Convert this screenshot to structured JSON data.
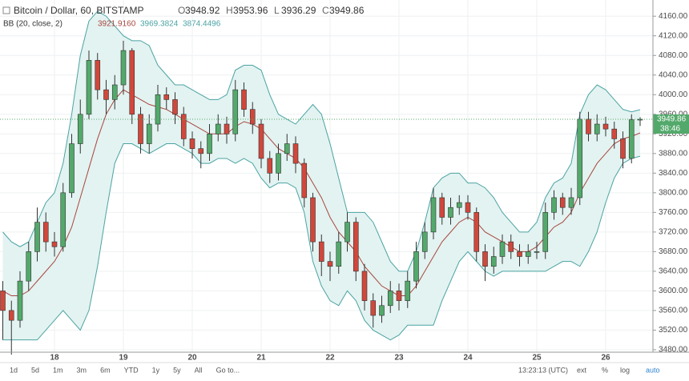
{
  "header": {
    "title": "Bitcoin / Dollar, 60, BITSTAMP",
    "ohlc": [
      {
        "key": "O",
        "value": "3948.92"
      },
      {
        "key": "H",
        "value": "3953.96"
      },
      {
        "key": "L",
        "value": "3936.29"
      },
      {
        "key": "C",
        "value": "3949.86"
      }
    ],
    "indicator": "BB (20, close, 2)",
    "indicator_values": [
      "3921.9160",
      "3969.3824",
      "3874.4496"
    ]
  },
  "chart_data": {
    "type": "candlestick",
    "up_color": "#53a96b",
    "down_color": "#d0483c",
    "categories": [
      null,
      null,
      null,
      null,
      null,
      null,
      "18",
      null,
      null,
      null,
      null,
      null,
      null,
      null,
      "19",
      null,
      null,
      null,
      null,
      null,
      null,
      null,
      "20",
      null,
      null,
      null,
      null,
      null,
      null,
      null,
      "21",
      null,
      null,
      null,
      null,
      null,
      null,
      null,
      "22",
      null,
      null,
      null,
      null,
      null,
      null,
      null,
      "23",
      null,
      null,
      null,
      null,
      null,
      null,
      null,
      "24",
      null,
      null,
      null,
      null,
      null,
      null,
      null,
      "25",
      null,
      null,
      null,
      null,
      null,
      null,
      null,
      "26",
      null,
      null,
      null,
      null
    ],
    "open": [
      3600,
      3560,
      3540,
      3620,
      3680,
      3740,
      3700,
      3690,
      3800,
      3900,
      3960,
      4070,
      4010,
      3990,
      4020,
      4090,
      3960,
      3900,
      3940,
      4000,
      3990,
      3960,
      3910,
      3890,
      3880,
      3920,
      3940,
      3920,
      4010,
      3970,
      3940,
      3870,
      3840,
      3880,
      3900,
      3860,
      3790,
      3700,
      3660,
      3650,
      3700,
      3740,
      3640,
      3580,
      3550,
      3570,
      3600,
      3580,
      3620,
      3680,
      3720,
      3790,
      3750,
      3770,
      3780,
      3760,
      3680,
      3650,
      3670,
      3700,
      3680,
      3670,
      3680,
      3680,
      3760,
      3790,
      3770,
      3790,
      3950,
      3920,
      3940,
      3930,
      3910,
      3870,
      3948.92
    ],
    "high": [
      3620,
      3580,
      3640,
      3700,
      3770,
      3760,
      3720,
      3820,
      3920,
      3990,
      4090,
      4085,
      4030,
      4040,
      4110,
      4095,
      3975,
      3960,
      4020,
      4015,
      4005,
      3975,
      3925,
      3905,
      3940,
      3960,
      3955,
      4030,
      4025,
      3985,
      3950,
      3885,
      3900,
      3920,
      3915,
      3870,
      3800,
      3715,
      3680,
      3720,
      3760,
      3750,
      3655,
      3595,
      3590,
      3620,
      3615,
      3640,
      3700,
      3740,
      3810,
      3800,
      3790,
      3795,
      3795,
      3770,
      3695,
      3690,
      3715,
      3715,
      3695,
      3695,
      3700,
      3780,
      3805,
      3800,
      3810,
      3965,
      3965,
      3960,
      3955,
      3945,
      3925,
      3960,
      3953.96
    ],
    "low": [
      3500,
      3470,
      3525,
      3600,
      3660,
      3680,
      3670,
      3680,
      3790,
      3880,
      3950,
      3990,
      3960,
      3970,
      4000,
      3940,
      3880,
      3880,
      3925,
      3970,
      3940,
      3895,
      3870,
      3850,
      3865,
      3905,
      3900,
      3905,
      3955,
      3920,
      3850,
      3820,
      3825,
      3865,
      3840,
      3770,
      3680,
      3630,
      3620,
      3635,
      3680,
      3620,
      3560,
      3525,
      3535,
      3555,
      3560,
      3565,
      3605,
      3665,
      3705,
      3735,
      3735,
      3755,
      3745,
      3660,
      3620,
      3635,
      3655,
      3665,
      3650,
      3655,
      3665,
      3665,
      3745,
      3755,
      3755,
      3775,
      3905,
      3905,
      3915,
      3890,
      3850,
      3860,
      3936.29
    ],
    "close": [
      3560,
      3540,
      3620,
      3680,
      3740,
      3700,
      3690,
      3800,
      3900,
      3960,
      4070,
      4010,
      3990,
      4020,
      4090,
      3960,
      3900,
      3940,
      4000,
      3990,
      3960,
      3910,
      3890,
      3880,
      3920,
      3940,
      3920,
      4010,
      3970,
      3940,
      3870,
      3840,
      3880,
      3900,
      3860,
      3790,
      3700,
      3660,
      3650,
      3700,
      3740,
      3640,
      3580,
      3550,
      3570,
      3600,
      3580,
      3620,
      3680,
      3720,
      3790,
      3750,
      3770,
      3780,
      3760,
      3680,
      3650,
      3670,
      3700,
      3680,
      3670,
      3680,
      3680,
      3760,
      3790,
      3770,
      3790,
      3950,
      3920,
      3940,
      3930,
      3910,
      3870,
      3948.92,
      3949.86
    ],
    "bands": {
      "fill": "#e3f3f1",
      "band_color": "#4ba3a3",
      "middle_color": "#a8463f",
      "upper": [
        3720,
        3700,
        3690,
        3700,
        3740,
        3780,
        3800,
        3860,
        3960,
        4080,
        4150,
        4170,
        4160,
        4140,
        4120,
        4110,
        4110,
        4100,
        4060,
        4040,
        4020,
        4020,
        4010,
        4000,
        3990,
        3990,
        4000,
        4050,
        4060,
        4060,
        4050,
        4000,
        3960,
        3950,
        3940,
        3960,
        3980,
        3960,
        3900,
        3830,
        3760,
        3760,
        3760,
        3740,
        3700,
        3660,
        3640,
        3640,
        3680,
        3740,
        3810,
        3830,
        3840,
        3840,
        3820,
        3820,
        3810,
        3790,
        3760,
        3740,
        3720,
        3720,
        3740,
        3790,
        3820,
        3830,
        3860,
        3960,
        4000,
        4020,
        4010,
        3990,
        3970,
        3965,
        3969.3824
      ],
      "middle": [
        3600,
        3590,
        3590,
        3600,
        3620,
        3640,
        3660,
        3690,
        3730,
        3790,
        3850,
        3910,
        3960,
        3990,
        4010,
        4000,
        3990,
        3980,
        3975,
        3970,
        3960,
        3950,
        3940,
        3930,
        3920,
        3920,
        3920,
        3935,
        3945,
        3940,
        3930,
        3910,
        3890,
        3880,
        3870,
        3850,
        3820,
        3790,
        3750,
        3720,
        3700,
        3680,
        3650,
        3630,
        3610,
        3600,
        3590,
        3590,
        3610,
        3640,
        3670,
        3700,
        3720,
        3740,
        3750,
        3740,
        3720,
        3710,
        3700,
        3690,
        3680,
        3680,
        3690,
        3710,
        3730,
        3740,
        3760,
        3800,
        3830,
        3860,
        3880,
        3900,
        3910,
        3915,
        3921.916
      ],
      "lower": [
        3500,
        3500,
        3500,
        3500,
        3500,
        3520,
        3540,
        3560,
        3540,
        3520,
        3560,
        3650,
        3760,
        3860,
        3900,
        3900,
        3890,
        3880,
        3890,
        3900,
        3900,
        3890,
        3880,
        3860,
        3860,
        3870,
        3870,
        3860,
        3870,
        3860,
        3830,
        3810,
        3820,
        3820,
        3810,
        3760,
        3660,
        3610,
        3580,
        3570,
        3600,
        3580,
        3540,
        3520,
        3510,
        3500,
        3510,
        3530,
        3530,
        3530,
        3530,
        3580,
        3620,
        3660,
        3680,
        3660,
        3640,
        3630,
        3640,
        3640,
        3640,
        3640,
        3640,
        3640,
        3650,
        3660,
        3660,
        3650,
        3680,
        3720,
        3780,
        3830,
        3860,
        3870,
        3874.4496
      ]
    },
    "ylim": [
      3475,
      4193
    ],
    "yticks": [
      {
        "value": 3480,
        "label": "3480.00"
      },
      {
        "value": 3520,
        "label": "3520.00"
      },
      {
        "value": 3560,
        "label": "3560.00"
      },
      {
        "value": 3600,
        "label": "3600.00"
      },
      {
        "value": 3640,
        "label": "3640.00"
      },
      {
        "value": 3680,
        "label": "3680.00"
      },
      {
        "value": 3720,
        "label": "3720.00"
      },
      {
        "value": 3760,
        "label": "3760.00"
      },
      {
        "value": 3800,
        "label": "3800.00"
      },
      {
        "value": 3840,
        "label": "3840.00"
      },
      {
        "value": 3880,
        "label": "3880.00"
      },
      {
        "value": 3920,
        "label": "3920.00"
      },
      {
        "value": 3960,
        "label": "3960.00"
      },
      {
        "value": 4000,
        "label": "4000.00"
      },
      {
        "value": 4040,
        "label": "4040.00"
      },
      {
        "value": 4080,
        "label": "4080.00"
      },
      {
        "value": 4120,
        "label": "4120.00"
      },
      {
        "value": 4160,
        "label": "4160.00"
      }
    ],
    "grid": true,
    "countdown": "38:46"
  },
  "toolbar": {
    "ranges": [
      "1d",
      "5d",
      "1m",
      "3m",
      "6m",
      "YTD",
      "1y",
      "5y",
      "All",
      "Go to..."
    ],
    "time": "13:23:13 (UTC)",
    "options": [
      "ext",
      "%",
      "log",
      "auto"
    ]
  }
}
